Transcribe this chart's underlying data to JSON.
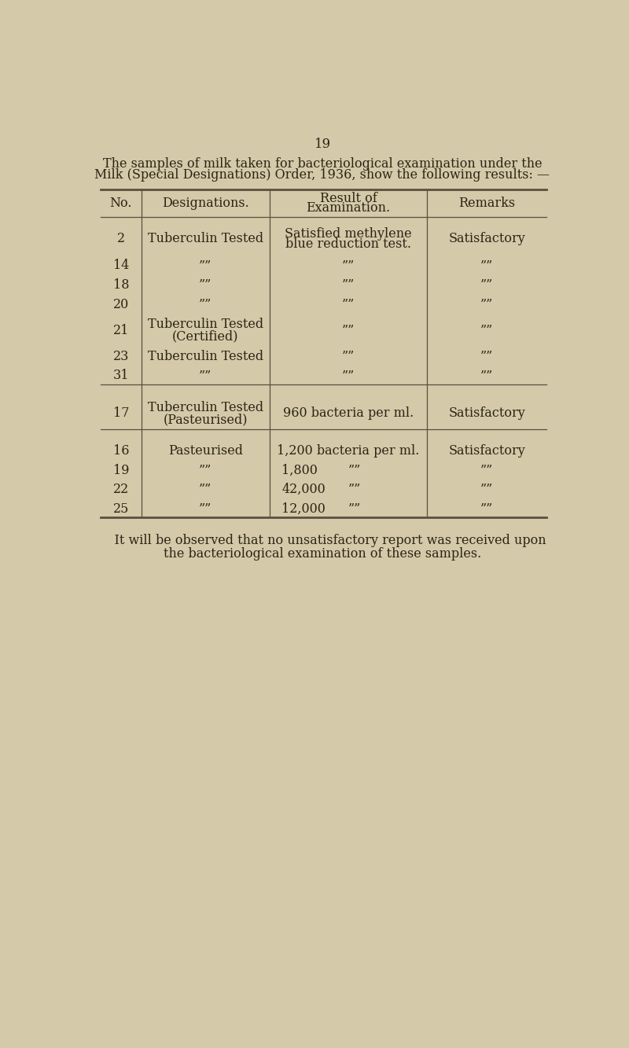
{
  "page_number": "19",
  "intro_line1": "The samples of milk taken for bacteriological examination under the",
  "intro_line2": "Milk (Special Designations) Order, 1936, show the following results: —",
  "col_headers_line1": [
    "No.",
    "Designations.",
    "Result of",
    "Remarks"
  ],
  "col_headers_line2": [
    "",
    "",
    "Examination.",
    ""
  ],
  "rows": [
    {
      "no": "2",
      "desig": "Tuberculin Tested",
      "desig2": "",
      "result": "Satisfied methylene",
      "result2": "blue reduction test.",
      "remarks": "Satisfactory"
    },
    {
      "no": "14",
      "desig": "””",
      "desig2": "",
      "result": "””",
      "result2": "",
      "remarks": "””"
    },
    {
      "no": "18",
      "desig": "””",
      "desig2": "",
      "result": "””",
      "result2": "",
      "remarks": "””"
    },
    {
      "no": "20",
      "desig": "””",
      "desig2": "",
      "result": "””",
      "result2": "",
      "remarks": "””"
    },
    {
      "no": "21",
      "desig": "Tuberculin Tested",
      "desig2": "(Certified)",
      "result": "””",
      "result2": "",
      "remarks": "””"
    },
    {
      "no": "23",
      "desig": "Tuberculin Tested",
      "desig2": "",
      "result": "””",
      "result2": "",
      "remarks": "””"
    },
    {
      "no": "31",
      "desig": "””",
      "desig2": "",
      "result": "””",
      "result2": "",
      "remarks": "””"
    },
    {
      "no": "17",
      "desig": "Tuberculin Tested",
      "desig2": "(Pasteurised)",
      "result": "960 bacteria per ml.",
      "result2": "",
      "remarks": "Satisfactory"
    },
    {
      "no": "16",
      "desig": "Pasteurised",
      "desig2": "",
      "result": "1,200 bacteria per ml.",
      "result2": "",
      "remarks": "Satisfactory"
    },
    {
      "no": "19",
      "desig": "””",
      "desig2": "",
      "result": "1,800",
      "result2": "",
      "remarks": "””",
      "result_ditto": true
    },
    {
      "no": "22",
      "desig": "””",
      "desig2": "",
      "result": "42,000",
      "result2": "",
      "remarks": "””",
      "result_ditto": true
    },
    {
      "no": "25",
      "desig": "””",
      "desig2": "",
      "result": "12,000",
      "result2": "",
      "remarks": "””",
      "result_ditto": true
    }
  ],
  "footer_line1": "    It will be observed that no unsatisfactory report was received upon",
  "footer_line2": "the bacteriological examination of these samples.",
  "bg_color": "#d4c9a8",
  "text_color": "#2c2416",
  "line_color": "#5a5040",
  "ditto": "””"
}
